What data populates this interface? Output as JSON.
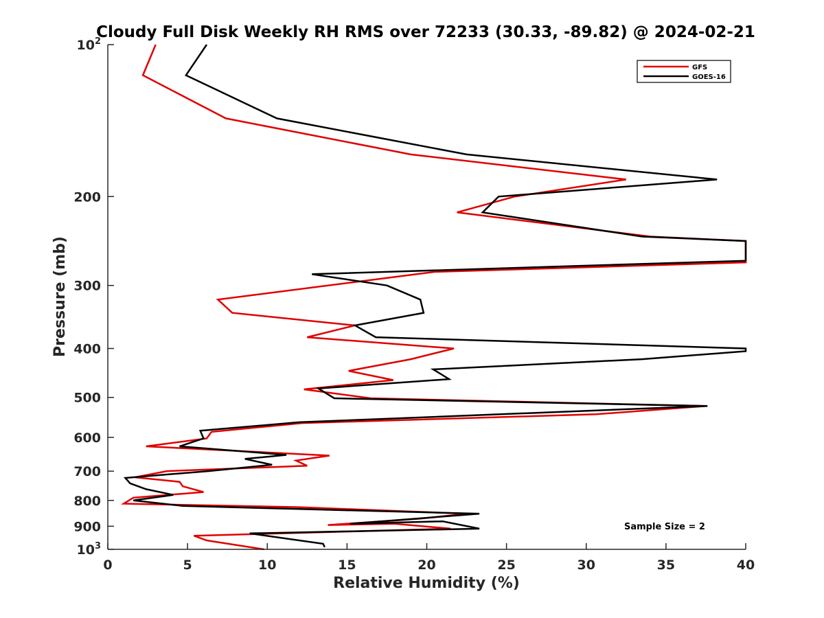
{
  "chart_data": {
    "type": "line",
    "orientation": "vertical-profile",
    "title": "Cloudy Full Disk Weekly RH RMS over 72233 (30.33, -89.82) @ 2024-02-21",
    "xlabel": "Relative Humidity (%)",
    "ylabel": "Pressure (mb)",
    "xlim": [
      0,
      40
    ],
    "ylim": [
      100,
      1000
    ],
    "yscale": "log",
    "y_reversed": true,
    "x_ticks": [
      {
        "value": 0,
        "label": "0"
      },
      {
        "value": 5,
        "label": "5"
      },
      {
        "value": 10,
        "label": "10"
      },
      {
        "value": 15,
        "label": "15"
      },
      {
        "value": 20,
        "label": "20"
      },
      {
        "value": 25,
        "label": "25"
      },
      {
        "value": 30,
        "label": "30"
      },
      {
        "value": 35,
        "label": "35"
      },
      {
        "value": 40,
        "label": "40"
      }
    ],
    "y_ticks": [
      {
        "value": 100,
        "base": "10",
        "exp": "2"
      },
      {
        "value": 200,
        "label": "200"
      },
      {
        "value": 300,
        "label": "300"
      },
      {
        "value": 400,
        "label": "400"
      },
      {
        "value": 500,
        "label": "500"
      },
      {
        "value": 600,
        "label": "600"
      },
      {
        "value": 700,
        "label": "700"
      },
      {
        "value": 800,
        "label": "800"
      },
      {
        "value": 900,
        "label": "900"
      },
      {
        "value": 1000,
        "base": "10",
        "exp": "3"
      }
    ],
    "legend": {
      "placement": "top-right",
      "entries": [
        "GFS",
        "GOES-16"
      ]
    },
    "annotation": "Sample Size = 2",
    "series": [
      {
        "name": "GFS",
        "color": "#e00000",
        "points": [
          {
            "x": 3.0,
            "y": 100
          },
          {
            "x": 2.2,
            "y": 115
          },
          {
            "x": 7.4,
            "y": 140
          },
          {
            "x": 19.0,
            "y": 165
          },
          {
            "x": 32.5,
            "y": 185
          },
          {
            "x": 25.5,
            "y": 200
          },
          {
            "x": 21.9,
            "y": 215
          },
          {
            "x": 34.0,
            "y": 240
          },
          {
            "x": 40.0,
            "y": 245
          },
          {
            "x": 40.0,
            "y": 270
          },
          {
            "x": 20.5,
            "y": 282
          },
          {
            "x": 6.9,
            "y": 320
          },
          {
            "x": 7.8,
            "y": 340
          },
          {
            "x": 15.5,
            "y": 360
          },
          {
            "x": 12.5,
            "y": 380
          },
          {
            "x": 21.7,
            "y": 400
          },
          {
            "x": 19.0,
            "y": 420
          },
          {
            "x": 15.1,
            "y": 443
          },
          {
            "x": 17.9,
            "y": 462
          },
          {
            "x": 12.3,
            "y": 482
          },
          {
            "x": 16.5,
            "y": 502
          },
          {
            "x": 37.5,
            "y": 520
          },
          {
            "x": 30.6,
            "y": 540
          },
          {
            "x": 12.2,
            "y": 562
          },
          {
            "x": 6.5,
            "y": 585
          },
          {
            "x": 6.2,
            "y": 603
          },
          {
            "x": 2.4,
            "y": 625
          },
          {
            "x": 13.9,
            "y": 652
          },
          {
            "x": 11.8,
            "y": 667
          },
          {
            "x": 12.5,
            "y": 683
          },
          {
            "x": 3.7,
            "y": 700
          },
          {
            "x": 1.7,
            "y": 720
          },
          {
            "x": 4.5,
            "y": 735
          },
          {
            "x": 4.7,
            "y": 750
          },
          {
            "x": 6.0,
            "y": 770
          },
          {
            "x": 1.6,
            "y": 790
          },
          {
            "x": 1.0,
            "y": 812
          },
          {
            "x": 12.0,
            "y": 825
          },
          {
            "x": 22.5,
            "y": 850
          },
          {
            "x": 19.5,
            "y": 870
          },
          {
            "x": 13.8,
            "y": 895
          },
          {
            "x": 18.0,
            "y": 890
          },
          {
            "x": 21.5,
            "y": 910
          },
          {
            "x": 5.4,
            "y": 940
          },
          {
            "x": 6.2,
            "y": 960
          },
          {
            "x": 9.8,
            "y": 1000
          }
        ]
      },
      {
        "name": "GOES-16",
        "color": "#000000",
        "points": [
          {
            "x": 6.2,
            "y": 100
          },
          {
            "x": 4.9,
            "y": 115
          },
          {
            "x": 10.6,
            "y": 140
          },
          {
            "x": 22.5,
            "y": 165
          },
          {
            "x": 38.2,
            "y": 185
          },
          {
            "x": 24.5,
            "y": 200
          },
          {
            "x": 23.5,
            "y": 215
          },
          {
            "x": 33.5,
            "y": 240
          },
          {
            "x": 40.0,
            "y": 245
          },
          {
            "x": 40.0,
            "y": 268
          },
          {
            "x": 12.8,
            "y": 285
          },
          {
            "x": 17.5,
            "y": 300
          },
          {
            "x": 19.6,
            "y": 320
          },
          {
            "x": 19.8,
            "y": 340
          },
          {
            "x": 15.5,
            "y": 360
          },
          {
            "x": 16.8,
            "y": 380
          },
          {
            "x": 40.0,
            "y": 400
          },
          {
            "x": 40.0,
            "y": 405
          },
          {
            "x": 33.5,
            "y": 420
          },
          {
            "x": 20.4,
            "y": 440
          },
          {
            "x": 21.4,
            "y": 460
          },
          {
            "x": 13.2,
            "y": 480
          },
          {
            "x": 14.2,
            "y": 502
          },
          {
            "x": 37.6,
            "y": 520
          },
          {
            "x": 12.0,
            "y": 560
          },
          {
            "x": 5.8,
            "y": 582
          },
          {
            "x": 6.0,
            "y": 603
          },
          {
            "x": 4.5,
            "y": 625
          },
          {
            "x": 11.2,
            "y": 650
          },
          {
            "x": 8.6,
            "y": 662
          },
          {
            "x": 10.3,
            "y": 680
          },
          {
            "x": 6.3,
            "y": 700
          },
          {
            "x": 1.1,
            "y": 722
          },
          {
            "x": 1.4,
            "y": 740
          },
          {
            "x": 2.4,
            "y": 760
          },
          {
            "x": 4.1,
            "y": 780
          },
          {
            "x": 1.6,
            "y": 800
          },
          {
            "x": 4.7,
            "y": 820
          },
          {
            "x": 12.0,
            "y": 832
          },
          {
            "x": 23.3,
            "y": 850
          },
          {
            "x": 15.2,
            "y": 890
          },
          {
            "x": 21.0,
            "y": 880
          },
          {
            "x": 23.3,
            "y": 910
          },
          {
            "x": 8.9,
            "y": 930
          },
          {
            "x": 13.5,
            "y": 975
          },
          {
            "x": 13.6,
            "y": 990
          }
        ]
      }
    ]
  }
}
